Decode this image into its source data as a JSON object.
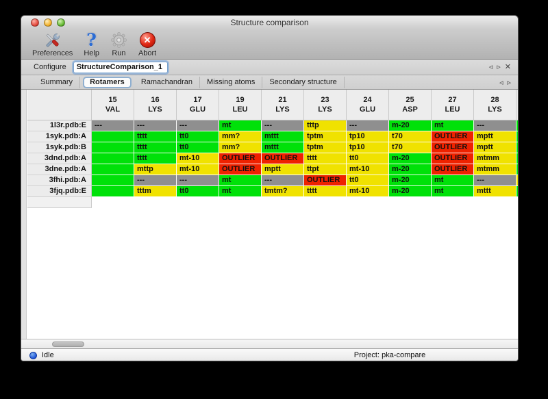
{
  "window": {
    "title": "Structure comparison"
  },
  "toolbar": {
    "items": [
      {
        "label": "Preferences"
      },
      {
        "label": "Help",
        "glyph": "?"
      },
      {
        "label": "Run"
      },
      {
        "label": "Abort",
        "glyph": "✕"
      }
    ]
  },
  "configure": {
    "label": "Configure",
    "value": "StructureComparison_1"
  },
  "pane_nav": {
    "left_arrow": "◃",
    "right_arrow": "▹",
    "close": "✕"
  },
  "tab_nav": {
    "left_arrow": "◃",
    "right_arrow": "▹"
  },
  "tabs": [
    {
      "label": "Summary",
      "selected": false
    },
    {
      "label": "Rotamers",
      "selected": true
    },
    {
      "label": "Ramachandran",
      "selected": false
    },
    {
      "label": "Missing atoms",
      "selected": false
    },
    {
      "label": "Secondary structure",
      "selected": false
    }
  ],
  "table": {
    "colors": {
      "green": "#00e109",
      "yellow": "#f0e200",
      "red": "#ee2200",
      "gray": "#8f8f8f"
    },
    "columns": [
      {
        "num": "15",
        "res": "VAL"
      },
      {
        "num": "16",
        "res": "LYS"
      },
      {
        "num": "17",
        "res": "GLU"
      },
      {
        "num": "19",
        "res": "LEU"
      },
      {
        "num": "21",
        "res": "LYS"
      },
      {
        "num": "23",
        "res": "LYS"
      },
      {
        "num": "24",
        "res": "GLU"
      },
      {
        "num": "25",
        "res": "ASP"
      },
      {
        "num": "27",
        "res": "LEU"
      },
      {
        "num": "28",
        "res": "LYS"
      },
      {
        "num": "",
        "res": ""
      }
    ],
    "rows": [
      {
        "label": "1l3r.pdb:E",
        "cells": [
          {
            "text": "---",
            "color": "gray"
          },
          {
            "text": "---",
            "color": "gray"
          },
          {
            "text": "---",
            "color": "gray"
          },
          {
            "text": "mt",
            "color": "green"
          },
          {
            "text": "---",
            "color": "gray"
          },
          {
            "text": "tttp",
            "color": "yellow"
          },
          {
            "text": "---",
            "color": "gray"
          },
          {
            "text": "m-20",
            "color": "green"
          },
          {
            "text": "mt",
            "color": "green"
          },
          {
            "text": "---",
            "color": "gray"
          },
          {
            "text": "",
            "color": "green"
          }
        ]
      },
      {
        "label": "1syk.pdb:A",
        "cells": [
          {
            "text": "",
            "color": "green"
          },
          {
            "text": "tttt",
            "color": "green"
          },
          {
            "text": "tt0",
            "color": "green"
          },
          {
            "text": "mm?",
            "color": "yellow"
          },
          {
            "text": "mttt",
            "color": "green"
          },
          {
            "text": "tptm",
            "color": "yellow"
          },
          {
            "text": "tp10",
            "color": "yellow"
          },
          {
            "text": "t70",
            "color": "yellow"
          },
          {
            "text": "OUTLIER",
            "color": "red"
          },
          {
            "text": "mptt",
            "color": "yellow"
          },
          {
            "text": "",
            "color": "green"
          }
        ]
      },
      {
        "label": "1syk.pdb:B",
        "cells": [
          {
            "text": "",
            "color": "green"
          },
          {
            "text": "tttt",
            "color": "green"
          },
          {
            "text": "tt0",
            "color": "green"
          },
          {
            "text": "mm?",
            "color": "yellow"
          },
          {
            "text": "mttt",
            "color": "green"
          },
          {
            "text": "tptm",
            "color": "yellow"
          },
          {
            "text": "tp10",
            "color": "yellow"
          },
          {
            "text": "t70",
            "color": "yellow"
          },
          {
            "text": "OUTLIER",
            "color": "red"
          },
          {
            "text": "mptt",
            "color": "yellow"
          },
          {
            "text": "",
            "color": "green"
          }
        ]
      },
      {
        "label": "3dnd.pdb:A",
        "cells": [
          {
            "text": "",
            "color": "green"
          },
          {
            "text": "tttt",
            "color": "green"
          },
          {
            "text": "mt-10",
            "color": "yellow"
          },
          {
            "text": "OUTLIER",
            "color": "red"
          },
          {
            "text": "OUTLIER",
            "color": "red"
          },
          {
            "text": "tttt",
            "color": "yellow"
          },
          {
            "text": "tt0",
            "color": "yellow"
          },
          {
            "text": "m-20",
            "color": "green"
          },
          {
            "text": "OUTLIER",
            "color": "red"
          },
          {
            "text": "mtmm",
            "color": "yellow"
          },
          {
            "text": "",
            "color": "green"
          }
        ]
      },
      {
        "label": "3dne.pdb:A",
        "cells": [
          {
            "text": "",
            "color": "green"
          },
          {
            "text": "mttp",
            "color": "yellow"
          },
          {
            "text": "mt-10",
            "color": "yellow"
          },
          {
            "text": "OUTLIER",
            "color": "red"
          },
          {
            "text": "mptt",
            "color": "yellow"
          },
          {
            "text": "ttpt",
            "color": "yellow"
          },
          {
            "text": "mt-10",
            "color": "yellow"
          },
          {
            "text": "m-20",
            "color": "green"
          },
          {
            "text": "OUTLIER",
            "color": "red"
          },
          {
            "text": "mtmm",
            "color": "yellow"
          },
          {
            "text": "",
            "color": "green"
          }
        ]
      },
      {
        "label": "3fhi.pdb:A",
        "cells": [
          {
            "text": "",
            "color": "green"
          },
          {
            "text": "---",
            "color": "gray"
          },
          {
            "text": "---",
            "color": "gray"
          },
          {
            "text": "mt",
            "color": "green"
          },
          {
            "text": "---",
            "color": "gray"
          },
          {
            "text": "OUTLIER",
            "color": "red"
          },
          {
            "text": "tt0",
            "color": "yellow"
          },
          {
            "text": "m-20",
            "color": "green"
          },
          {
            "text": "mt",
            "color": "green"
          },
          {
            "text": "---",
            "color": "gray"
          },
          {
            "text": "",
            "color": "yellow"
          }
        ]
      },
      {
        "label": "3fjq.pdb:E",
        "cells": [
          {
            "text": "",
            "color": "green"
          },
          {
            "text": "tttm",
            "color": "yellow"
          },
          {
            "text": "tt0",
            "color": "green"
          },
          {
            "text": "mt",
            "color": "green"
          },
          {
            "text": "tmtm?",
            "color": "yellow"
          },
          {
            "text": "tttt",
            "color": "yellow"
          },
          {
            "text": "mt-10",
            "color": "yellow"
          },
          {
            "text": "m-20",
            "color": "green"
          },
          {
            "text": "mt",
            "color": "green"
          },
          {
            "text": "mttt",
            "color": "yellow"
          },
          {
            "text": "",
            "color": "green"
          }
        ]
      }
    ]
  },
  "statusbar": {
    "status": "Idle",
    "project": "Project: pka-compare"
  }
}
